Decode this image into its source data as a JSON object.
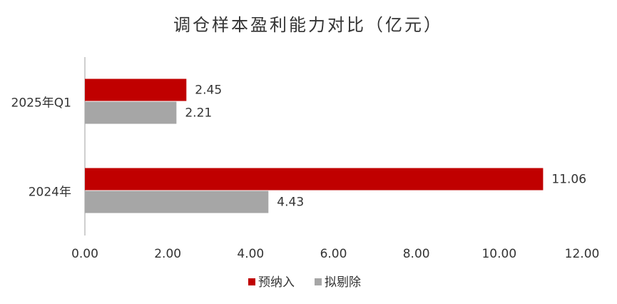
{
  "chart_data": {
    "type": "hbar",
    "title": "调仓样本盈利能力对比（亿元）",
    "categories": [
      "2025年Q1",
      "2024年"
    ],
    "series": [
      {
        "name": "预纳入",
        "color": "#c00000",
        "values": [
          2.45,
          11.06
        ]
      },
      {
        "name": "拟剔除",
        "color": "#a6a6a6",
        "values": [
          2.21,
          4.43
        ]
      }
    ],
    "xlim": [
      0,
      12
    ],
    "xticks": [
      {
        "value": 0,
        "label": "0.00"
      },
      {
        "value": 2,
        "label": "2.00"
      },
      {
        "value": 4,
        "label": "4.00"
      },
      {
        "value": 6,
        "label": "6.00"
      },
      {
        "value": 8,
        "label": "8.00"
      },
      {
        "value": 10,
        "label": "10.00"
      },
      {
        "value": 12,
        "label": "12.00"
      }
    ],
    "grid": false,
    "legend": "bottom"
  }
}
